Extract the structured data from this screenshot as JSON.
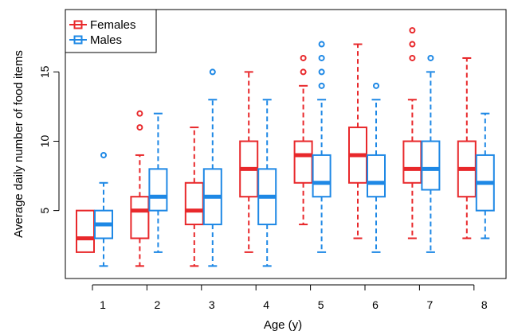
{
  "chart_data": {
    "type": "boxplot",
    "xlabel": "Age (y)",
    "ylabel": "Average daily number of food items",
    "categories": [
      "1",
      "2",
      "3",
      "4",
      "5",
      "6",
      "7",
      "8"
    ],
    "ylim": [
      0.1,
      19.5
    ],
    "yticks": [
      5,
      10,
      15
    ],
    "legend_position": "top-left",
    "series": [
      {
        "name": "Females",
        "color": "#e8282b",
        "boxes": [
          {
            "min": 2,
            "q1": 2,
            "median": 3,
            "q3": 5,
            "max": 5,
            "outliers": []
          },
          {
            "min": 1,
            "q1": 3,
            "median": 5,
            "q3": 6,
            "max": 9,
            "outliers": [
              11,
              12
            ]
          },
          {
            "min": 1,
            "q1": 4,
            "median": 5,
            "q3": 7,
            "max": 11,
            "outliers": []
          },
          {
            "min": 2,
            "q1": 6,
            "median": 8,
            "q3": 10,
            "max": 15,
            "outliers": []
          },
          {
            "min": 4,
            "q1": 7,
            "median": 9,
            "q3": 10,
            "max": 14,
            "outliers": [
              15,
              16
            ]
          },
          {
            "min": 3,
            "q1": 7,
            "median": 9,
            "q3": 11,
            "max": 17,
            "outliers": []
          },
          {
            "min": 3,
            "q1": 7,
            "median": 8,
            "q3": 10,
            "max": 13,
            "outliers": [
              16,
              17,
              18
            ]
          },
          {
            "min": 3,
            "q1": 6,
            "median": 8,
            "q3": 10,
            "max": 16,
            "outliers": []
          }
        ]
      },
      {
        "name": "Males",
        "color": "#1e88e5",
        "boxes": [
          {
            "min": 1,
            "q1": 3,
            "median": 4,
            "q3": 5,
            "max": 7,
            "outliers": [
              9
            ]
          },
          {
            "min": 2,
            "q1": 5,
            "median": 6,
            "q3": 8,
            "max": 12,
            "outliers": []
          },
          {
            "min": 1,
            "q1": 4,
            "median": 6,
            "q3": 8,
            "max": 13,
            "outliers": [
              15
            ]
          },
          {
            "min": 1,
            "q1": 4,
            "median": 6,
            "q3": 8,
            "max": 13,
            "outliers": []
          },
          {
            "min": 2,
            "q1": 6,
            "median": 7,
            "q3": 9,
            "max": 13,
            "outliers": [
              14,
              15,
              16,
              17
            ]
          },
          {
            "min": 2,
            "q1": 6,
            "median": 7,
            "q3": 9,
            "max": 13,
            "outliers": [
              14
            ]
          },
          {
            "min": 2,
            "q1": 6.5,
            "median": 8,
            "q3": 10,
            "max": 15,
            "outliers": [
              16
            ]
          },
          {
            "min": 3,
            "q1": 5,
            "median": 7,
            "q3": 9,
            "max": 12,
            "outliers": []
          }
        ]
      }
    ]
  }
}
